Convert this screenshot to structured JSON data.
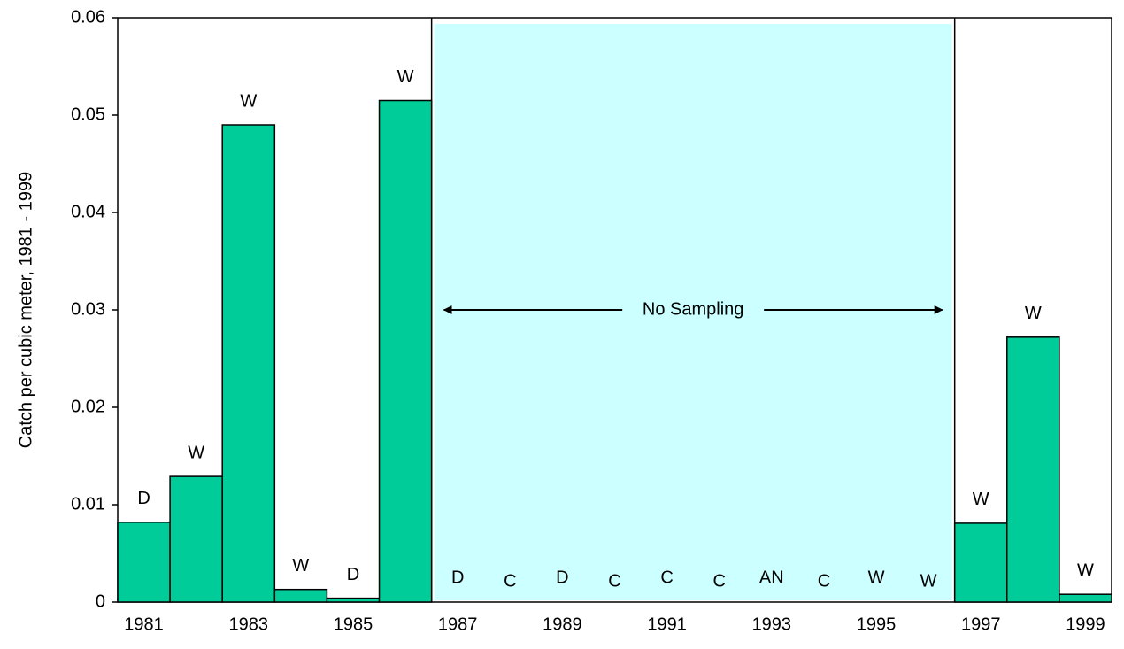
{
  "chart_data": {
    "type": "bar",
    "ylabel": "Catch per cubic meter, 1981 - 1999",
    "annotation": "No Sampling",
    "categories": [
      "1981",
      null,
      "1983",
      null,
      "1985",
      null,
      "1987",
      null,
      "1989",
      null,
      "1991",
      null,
      "1993",
      null,
      "1995",
      null,
      "1997",
      null,
      "1999"
    ],
    "values": [
      0.0082,
      0.0129,
      0.049,
      0.0013,
      0.0004,
      0.0515,
      null,
      null,
      null,
      null,
      null,
      null,
      null,
      null,
      null,
      null,
      0.0081,
      0.0272,
      0.0008
    ],
    "bar_labels": [
      "D",
      "W",
      "W",
      "W",
      "D",
      "W",
      "D",
      "C",
      "D",
      "C",
      "C",
      "C",
      "AN",
      "C",
      "W",
      "W",
      "W",
      "W",
      "W"
    ],
    "color": "#00cc99",
    "shade_color": "#ccffff",
    "ylim": [
      0,
      0.06
    ],
    "yticks": [
      0,
      0.01,
      0.02,
      0.03,
      0.04,
      0.05,
      0.06
    ],
    "grid": false
  }
}
